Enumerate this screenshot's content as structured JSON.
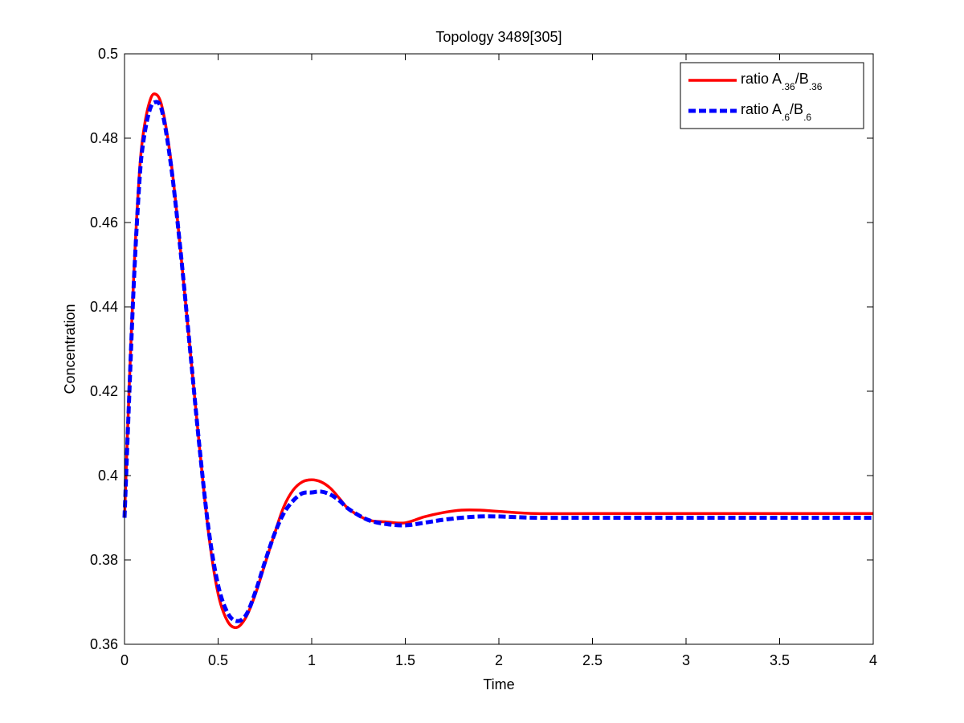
{
  "chart_data": {
    "type": "line",
    "title": "Topology 3489[305]",
    "xlabel": "Time",
    "ylabel": "Concentration",
    "xlim": [
      0,
      4
    ],
    "ylim": [
      0.36,
      0.5
    ],
    "xticks": [
      0,
      0.5,
      1,
      1.5,
      2,
      2.5,
      3,
      3.5,
      4
    ],
    "xtick_labels": [
      "0",
      "0.5",
      "1",
      "1.5",
      "2",
      "2.5",
      "3",
      "3.5",
      "4"
    ],
    "yticks": [
      0.36,
      0.38,
      0.4,
      0.42,
      0.44,
      0.46,
      0.48,
      0.5
    ],
    "ytick_labels": [
      "0.36",
      "0.38",
      "0.4",
      "0.42",
      "0.44",
      "0.46",
      "0.48",
      "0.5"
    ],
    "grid": false,
    "legend_position": "top-right",
    "series": [
      {
        "name": "ratio A.36/B.36",
        "legend": {
          "prefix": "ratio A",
          "sub1": ".36",
          "mid": "/B",
          "sub2": ".36"
        },
        "color": "#ff0000",
        "style": "solid",
        "x": [
          0,
          0.02,
          0.05,
          0.08,
          0.1,
          0.13,
          0.16,
          0.2,
          0.25,
          0.3,
          0.35,
          0.4,
          0.45,
          0.5,
          0.55,
          0.6,
          0.65,
          0.7,
          0.75,
          0.8,
          0.85,
          0.9,
          0.95,
          1.0,
          1.05,
          1.1,
          1.15,
          1.2,
          1.3,
          1.4,
          1.5,
          1.6,
          1.7,
          1.8,
          1.9,
          2.0,
          2.2,
          2.5,
          3.0,
          3.5,
          4.0
        ],
        "y": [
          0.39,
          0.415,
          0.448,
          0.472,
          0.481,
          0.488,
          0.4905,
          0.4875,
          0.474,
          0.453,
          0.43,
          0.407,
          0.386,
          0.372,
          0.3655,
          0.364,
          0.3665,
          0.372,
          0.379,
          0.386,
          0.3925,
          0.3965,
          0.3985,
          0.399,
          0.3985,
          0.397,
          0.3945,
          0.392,
          0.3895,
          0.389,
          0.3888,
          0.3902,
          0.3912,
          0.3918,
          0.3918,
          0.3915,
          0.391,
          0.391,
          0.391,
          0.391,
          0.391
        ]
      },
      {
        "name": "ratio A.6/B.6",
        "legend": {
          "prefix": "ratio A",
          "sub1": ".6",
          "mid": "/B",
          "sub2": ".6"
        },
        "color": "#0000ff",
        "style": "dashed",
        "x": [
          0,
          0.02,
          0.05,
          0.08,
          0.1,
          0.13,
          0.16,
          0.2,
          0.25,
          0.3,
          0.35,
          0.4,
          0.45,
          0.5,
          0.55,
          0.6,
          0.65,
          0.7,
          0.75,
          0.8,
          0.85,
          0.9,
          0.95,
          1.0,
          1.05,
          1.1,
          1.15,
          1.2,
          1.3,
          1.4,
          1.5,
          1.6,
          1.7,
          1.8,
          1.9,
          2.0,
          2.2,
          2.5,
          3.0,
          3.5,
          4.0
        ],
        "y": [
          0.39,
          0.413,
          0.446,
          0.47,
          0.479,
          0.486,
          0.4885,
          0.4865,
          0.473,
          0.453,
          0.43,
          0.407,
          0.387,
          0.374,
          0.3675,
          0.3655,
          0.367,
          0.3725,
          0.3795,
          0.386,
          0.391,
          0.394,
          0.3958,
          0.396,
          0.3962,
          0.3955,
          0.394,
          0.392,
          0.3895,
          0.3885,
          0.3882,
          0.3888,
          0.3895,
          0.39,
          0.3903,
          0.3903,
          0.39,
          0.39,
          0.39,
          0.39,
          0.39
        ]
      }
    ]
  }
}
